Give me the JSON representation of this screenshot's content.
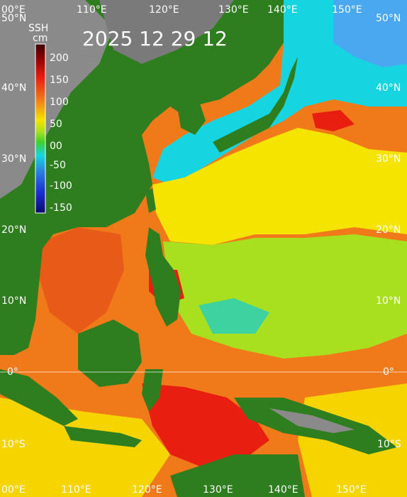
{
  "title": "2025  12  29  12",
  "colorbar": {
    "label_line1": "SSH",
    "label_line2": "cm",
    "ticks": [
      "200",
      "150",
      "100",
      "50",
      "00",
      "-50",
      "-100",
      "-150"
    ]
  },
  "lon_labels_top": [
    "00°E",
    "110°E",
    "120°E",
    "130°E",
    "140°E",
    "150°E"
  ],
  "lon_labels_bottom": [
    "00°E",
    "110°E",
    "120°E",
    "130°E",
    "140°E",
    "150°E"
  ],
  "lat_labels_left": [
    "50°N",
    "40°N",
    "30°N",
    "20°N",
    "10°N",
    "0°",
    "10°S"
  ],
  "lat_labels_right": [
    "50°N",
    "40°N",
    "30°N",
    "20°N",
    "10°N",
    "0°",
    "10°S"
  ],
  "colors": {
    "land_green": "#2e7d1e",
    "land_dark": "#1b4d12",
    "mountain_gray": "#8a8a8a",
    "ssh_red": "#e81f10",
    "ssh_orange": "#f07a1a",
    "ssh_yellow": "#f5e400",
    "ssh_lightgreen": "#a8e020",
    "ssh_green": "#3ed22a",
    "ssh_cyan": "#17d5e0",
    "ssh_blue": "#2a7de0"
  }
}
